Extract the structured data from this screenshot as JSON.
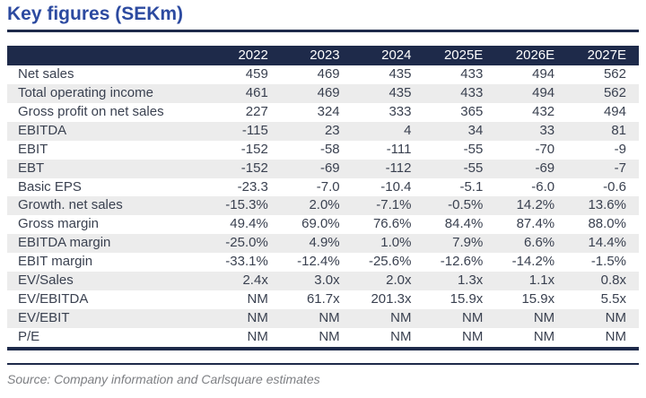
{
  "title": "Key figures (SEKm)",
  "source": "Source: Company information and Carlsquare estimates",
  "colors": {
    "title_blue": "#2c4aa0",
    "navy": "#1e2a4a",
    "stripe_gray": "#ececec",
    "body_text": "#3a4150",
    "source_gray": "#7d7f83"
  },
  "table": {
    "columns": [
      "2022",
      "2023",
      "2024",
      "2025E",
      "2026E",
      "2027E"
    ],
    "rows": [
      {
        "label": "Net sales",
        "values": [
          "459",
          "469",
          "435",
          "433",
          "494",
          "562"
        ]
      },
      {
        "label": "Total operating income",
        "values": [
          "461",
          "469",
          "435",
          "433",
          "494",
          "562"
        ]
      },
      {
        "label": "Gross profit on net sales",
        "values": [
          "227",
          "324",
          "333",
          "365",
          "432",
          "494"
        ]
      },
      {
        "label": "EBITDA",
        "values": [
          "-115",
          "23",
          "4",
          "34",
          "33",
          "81"
        ]
      },
      {
        "label": "EBIT",
        "values": [
          "-152",
          "-58",
          "-111",
          "-55",
          "-70",
          "-9"
        ]
      },
      {
        "label": "EBT",
        "values": [
          "-152",
          "-69",
          "-112",
          "-55",
          "-69",
          "-7"
        ]
      },
      {
        "label": "Basic EPS",
        "values": [
          "-23.3",
          "-7.0",
          "-10.4",
          "-5.1",
          "-6.0",
          "-0.6"
        ]
      },
      {
        "label": "Growth. net sales",
        "values": [
          "-15.3%",
          "2.0%",
          "-7.1%",
          "-0.5%",
          "14.2%",
          "13.6%"
        ]
      },
      {
        "label": "Gross margin",
        "values": [
          "49.4%",
          "69.0%",
          "76.6%",
          "84.4%",
          "87.4%",
          "88.0%"
        ]
      },
      {
        "label": "EBITDA margin",
        "values": [
          "-25.0%",
          "4.9%",
          "1.0%",
          "7.9%",
          "6.6%",
          "14.4%"
        ]
      },
      {
        "label": "EBIT margin",
        "values": [
          "-33.1%",
          "-12.4%",
          "-25.6%",
          "-12.6%",
          "-14.2%",
          "-1.5%"
        ]
      },
      {
        "label": "EV/Sales",
        "values": [
          "2.4x",
          "3.0x",
          "2.0x",
          "1.3x",
          "1.1x",
          "0.8x"
        ]
      },
      {
        "label": "EV/EBITDA",
        "values": [
          "NM",
          "61.7x",
          "201.3x",
          "15.9x",
          "15.9x",
          "5.5x"
        ]
      },
      {
        "label": "EV/EBIT",
        "values": [
          "NM",
          "NM",
          "NM",
          "NM",
          "NM",
          "NM"
        ]
      },
      {
        "label": "P/E",
        "values": [
          "NM",
          "NM",
          "NM",
          "NM",
          "NM",
          "NM"
        ]
      }
    ]
  }
}
